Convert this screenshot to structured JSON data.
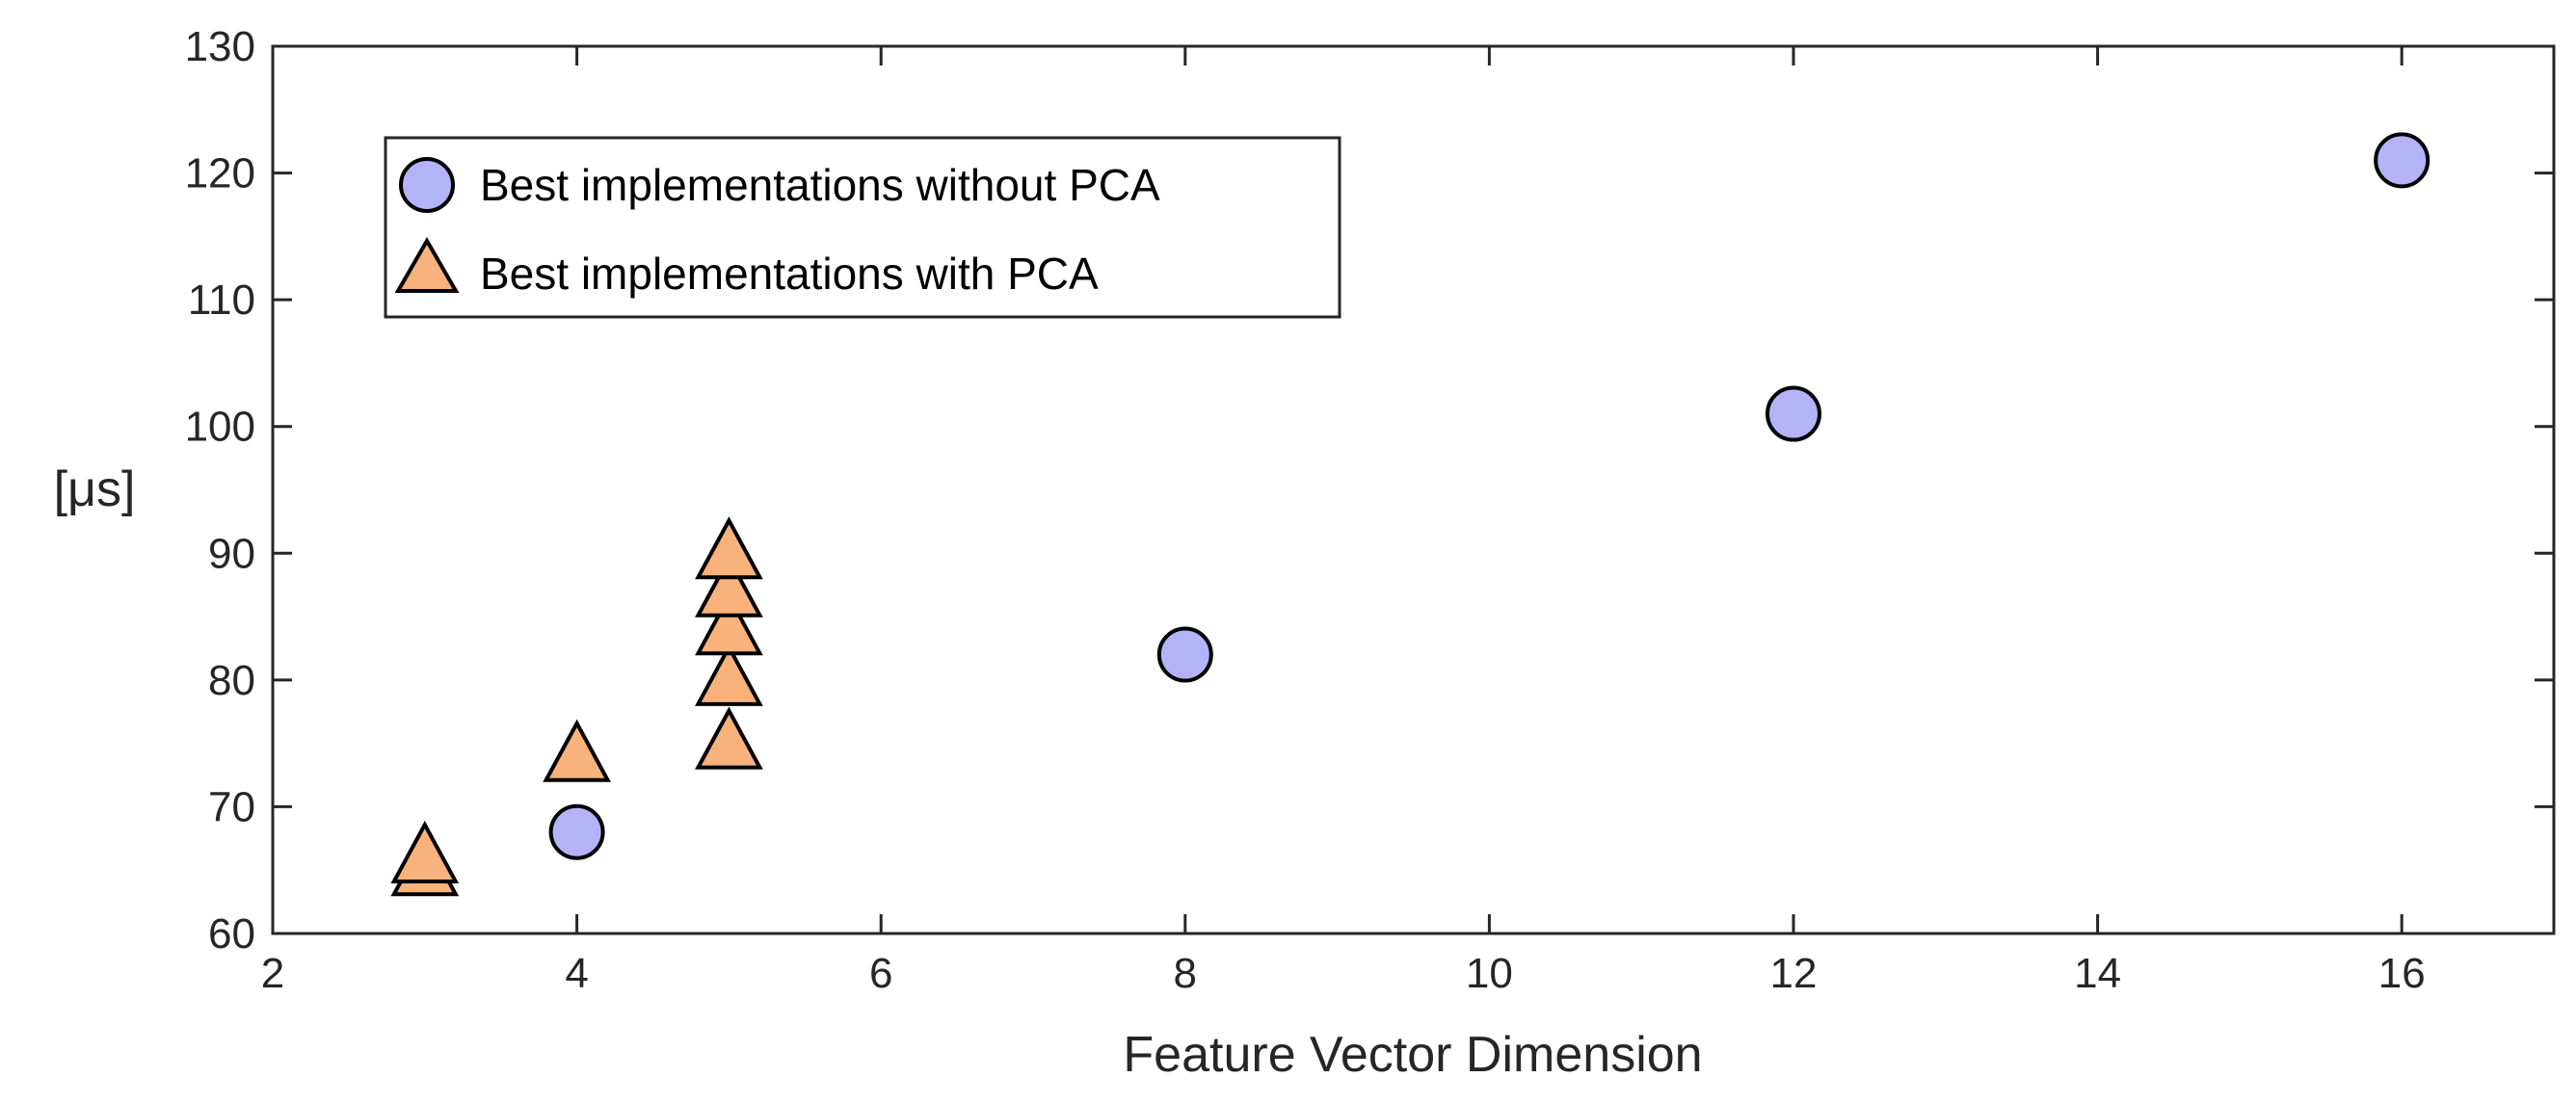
{
  "chart_data": {
    "type": "scatter",
    "xlabel": "Feature Vector Dimension",
    "ylabel": "[μs]",
    "xlim": [
      2,
      17
    ],
    "ylim": [
      60,
      130
    ],
    "xticks": [
      2,
      4,
      6,
      8,
      10,
      12,
      14,
      16
    ],
    "yticks": [
      60,
      70,
      80,
      90,
      100,
      110,
      120,
      130
    ],
    "grid": false,
    "legend_position": "top-left",
    "series": [
      {
        "name": "Best implementations without PCA",
        "marker": "circle",
        "color": "#b3b3f7",
        "points": [
          {
            "x": 4,
            "y": 68
          },
          {
            "x": 8,
            "y": 82
          },
          {
            "x": 12,
            "y": 101
          },
          {
            "x": 16,
            "y": 121
          }
        ]
      },
      {
        "name": "Best implementations with PCA",
        "marker": "triangle",
        "color": "#f9b27c",
        "points": [
          {
            "x": 3,
            "y": 65
          },
          {
            "x": 3,
            "y": 66
          },
          {
            "x": 4,
            "y": 74
          },
          {
            "x": 5,
            "y": 75
          },
          {
            "x": 5,
            "y": 80
          },
          {
            "x": 5,
            "y": 84
          },
          {
            "x": 5,
            "y": 87
          },
          {
            "x": 5,
            "y": 90
          }
        ]
      }
    ]
  }
}
